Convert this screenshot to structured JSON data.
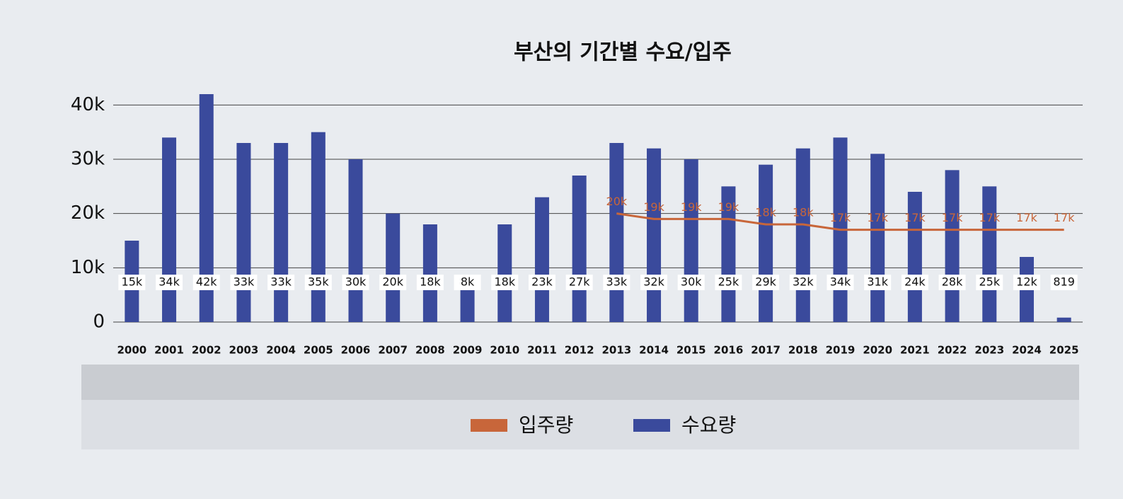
{
  "chart_data": {
    "type": "bar",
    "title": "부산의 기간별 수요/입주",
    "categories": [
      "2000",
      "2001",
      "2002",
      "2003",
      "2004",
      "2005",
      "2006",
      "2007",
      "2008",
      "2009",
      "2010",
      "2011",
      "2012",
      "2013",
      "2014",
      "2015",
      "2016",
      "2017",
      "2018",
      "2019",
      "2020",
      "2021",
      "2022",
      "2023",
      "2024",
      "2025"
    ],
    "series": [
      {
        "name": "입주량",
        "type": "line",
        "color": "#c8663a",
        "values": [
          null,
          null,
          null,
          null,
          null,
          null,
          null,
          null,
          null,
          null,
          null,
          null,
          null,
          20000,
          19000,
          19000,
          19000,
          18000,
          18000,
          17000,
          17000,
          17000,
          17000,
          17000,
          17000,
          17000
        ],
        "value_labels": [
          null,
          null,
          null,
          null,
          null,
          null,
          null,
          null,
          null,
          null,
          null,
          null,
          null,
          "20k",
          "19k",
          "19k",
          "19k",
          "18k",
          "18k",
          "17k",
          "17k",
          "17k",
          "17k",
          "17k",
          "17k",
          "17k"
        ]
      },
      {
        "name": "수요량",
        "type": "bar",
        "color": "#3a4a9c",
        "values": [
          15000,
          34000,
          42000,
          33000,
          33000,
          35000,
          30000,
          20000,
          18000,
          8000,
          18000,
          23000,
          27000,
          33000,
          32000,
          30000,
          25000,
          29000,
          32000,
          34000,
          31000,
          24000,
          28000,
          25000,
          12000,
          819
        ],
        "value_labels": [
          "15k",
          "34k",
          "42k",
          "33k",
          "33k",
          "35k",
          "30k",
          "20k",
          "18k",
          "8k",
          "18k",
          "23k",
          "27k",
          "33k",
          "32k",
          "30k",
          "25k",
          "29k",
          "32k",
          "34k",
          "31k",
          "24k",
          "28k",
          "25k",
          "12k",
          "819"
        ]
      }
    ],
    "ylim": [
      0,
      45000
    ],
    "yticks": [
      0,
      {
        "value": 10000,
        "label": "10k"
      },
      {
        "value": 20000,
        "label": "20k"
      },
      {
        "value": 30000,
        "label": "30k"
      },
      {
        "value": 40000,
        "label": "40k"
      }
    ],
    "grid": true,
    "legend": "bottom"
  }
}
